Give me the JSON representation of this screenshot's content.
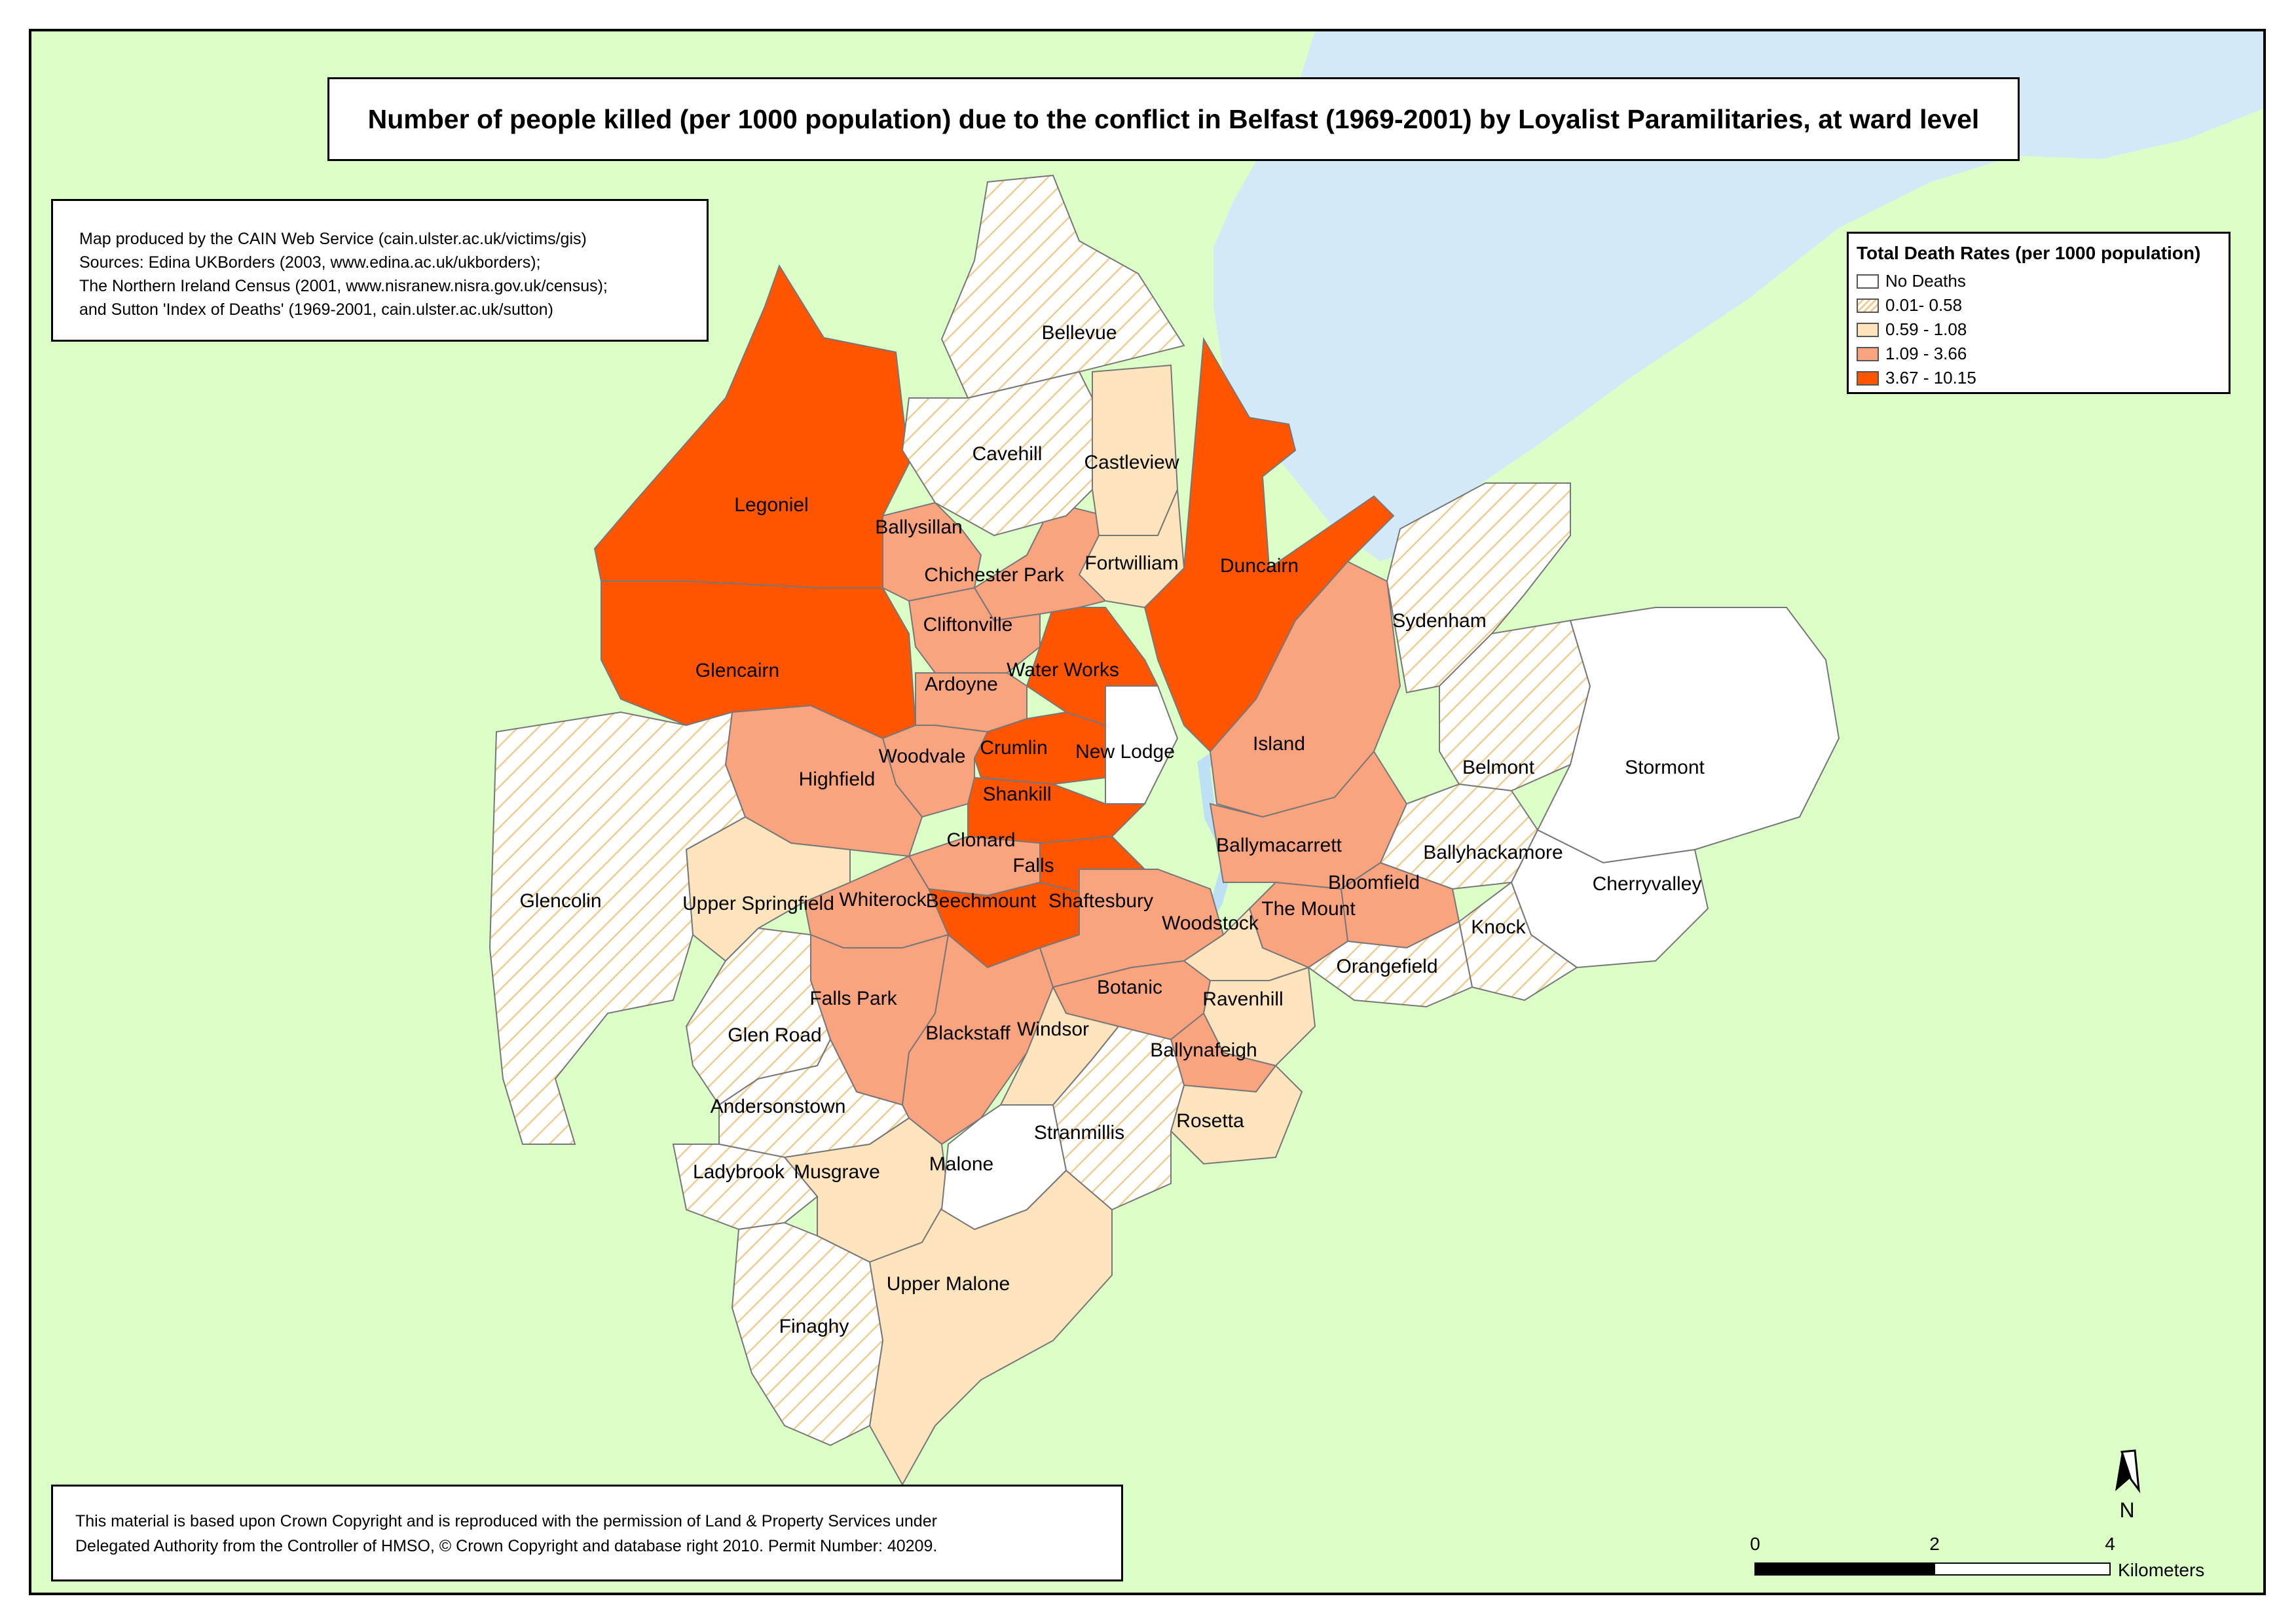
{
  "title": "Number of people killed (per 1000 population) due to the conflict in Belfast (1969-2001) by Loyalist Paramilitaries, at ward level",
  "credits": [
    "Map produced by the CAIN Web Service (cain.ulster.ac.uk/victims/gis)",
    "Sources: Edina UKBorders (2003, www.edina.ac.uk/ukborders);",
    "The Northern Ireland Census (2001, www.nisranew.nisra.gov.uk/census);",
    "and Sutton 'Index of Deaths' (1969-2001, cain.ulster.ac.uk/sutton)"
  ],
  "legend": {
    "title": "Total Death Rates (per 1000 population)",
    "items": [
      {
        "label": "No Deaths",
        "class": 0,
        "color": "#ffffff"
      },
      {
        "label": "0.01- 0.58",
        "class": 1,
        "color": "#f0cc90"
      },
      {
        "label": "0.59 - 1.08",
        "class": 2,
        "color": "#fde4bc"
      },
      {
        "label": "1.09 - 3.66",
        "class": 3,
        "color": "#f9a47e"
      },
      {
        "label": "3.67 - 10.15",
        "class": 4,
        "color": "#ff5500"
      }
    ]
  },
  "copyright": [
    "This material is based upon Crown Copyright and is reproduced with the permission of Land & Property Services under",
    "Delegated Authority from the Controller of HMSO, © Crown Copyright and database right 2010. Permit Number: 40209."
  ],
  "north_arrow": "N",
  "scale_bar": {
    "ticks": [
      "0",
      "2",
      "4"
    ],
    "unit": "Kilometers"
  },
  "wards": [
    {
      "name": "Legoniel",
      "class": 4
    },
    {
      "name": "Glencairn",
      "class": 4
    },
    {
      "name": "Crumlin",
      "class": 4
    },
    {
      "name": "Shankill",
      "class": 4
    },
    {
      "name": "Duncairn",
      "class": 4
    },
    {
      "name": "Water Works",
      "class": 4
    },
    {
      "name": "Falls",
      "class": 4
    },
    {
      "name": "Beechmount",
      "class": 4
    },
    {
      "name": "Ballysillan",
      "class": 3
    },
    {
      "name": "Chichester Park",
      "class": 3
    },
    {
      "name": "Cliftonville",
      "class": 3
    },
    {
      "name": "Ardoyne",
      "class": 3
    },
    {
      "name": "Woodvale",
      "class": 3
    },
    {
      "name": "Highfield",
      "class": 3
    },
    {
      "name": "Clonard",
      "class": 3
    },
    {
      "name": "Whiterock",
      "class": 3
    },
    {
      "name": "Falls Park",
      "class": 3
    },
    {
      "name": "Blackstaff",
      "class": 3
    },
    {
      "name": "Shaftesbury",
      "class": 3
    },
    {
      "name": "Island",
      "class": 3
    },
    {
      "name": "Ballymacarrett",
      "class": 3
    },
    {
      "name": "Bloomfield",
      "class": 3
    },
    {
      "name": "The Mount",
      "class": 3
    },
    {
      "name": "Botanic",
      "class": 3
    },
    {
      "name": "Ballynafeigh",
      "class": 3
    },
    {
      "name": "Castleview",
      "class": 2
    },
    {
      "name": "Fortwilliam",
      "class": 2
    },
    {
      "name": "Upper Springfield",
      "class": 2
    },
    {
      "name": "Windsor",
      "class": 2
    },
    {
      "name": "Ravenhill",
      "class": 2
    },
    {
      "name": "Rosetta",
      "class": 2
    },
    {
      "name": "Musgrave",
      "class": 2
    },
    {
      "name": "Upper Malone",
      "class": 2
    },
    {
      "name": "Woodstock",
      "class": 2
    },
    {
      "name": "Bellevue",
      "class": 1
    },
    {
      "name": "Cavehill",
      "class": 1
    },
    {
      "name": "Sydenham",
      "class": 1
    },
    {
      "name": "Belmont",
      "class": 1
    },
    {
      "name": "Ballyhackamore",
      "class": 1
    },
    {
      "name": "Knock",
      "class": 1
    },
    {
      "name": "Orangefield",
      "class": 1
    },
    {
      "name": "Glencolin",
      "class": 1
    },
    {
      "name": "Glen Road",
      "class": 1
    },
    {
      "name": "Andersonstown",
      "class": 1
    },
    {
      "name": "Ladybrook",
      "class": 1
    },
    {
      "name": "Stranmillis",
      "class": 1
    },
    {
      "name": "Finaghy",
      "class": 1
    },
    {
      "name": "New Lodge",
      "class": 0
    },
    {
      "name": "Stormont",
      "class": 0
    },
    {
      "name": "Cherryvalley",
      "class": 0
    },
    {
      "name": "Malone",
      "class": 0
    }
  ]
}
